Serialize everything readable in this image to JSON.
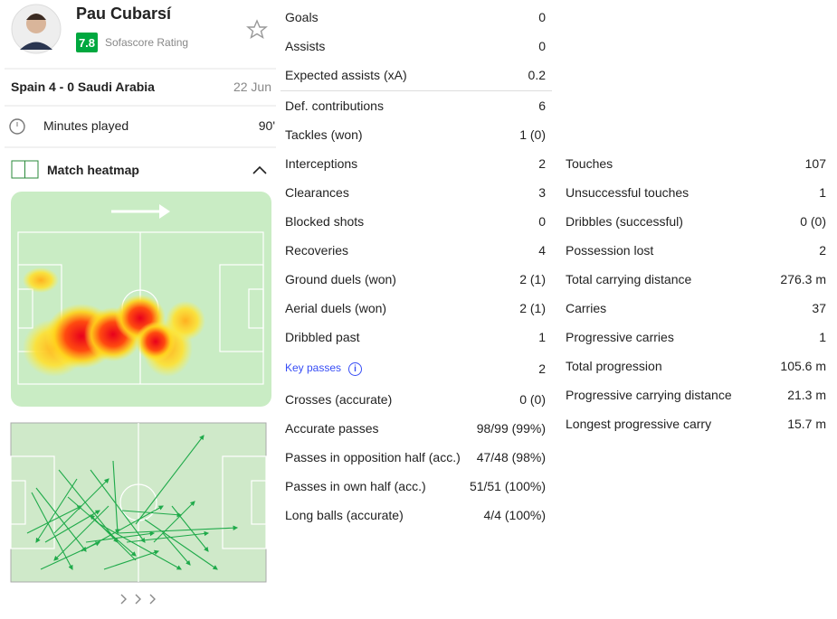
{
  "player": {
    "name": "Pau Cubarsí",
    "rating": "7.8",
    "rating_label": "Sofascore Rating"
  },
  "match": {
    "title": "Spain 4 - 0 Saudi Arabia",
    "date": "22 Jun"
  },
  "minutes": {
    "label": "Minutes played",
    "value": "90'"
  },
  "heatmap": {
    "title": "Match heatmap"
  },
  "stats": {
    "sections": [
      {
        "rows": [
          [
            "Goals",
            "0"
          ],
          [
            "Assists",
            "0"
          ],
          [
            "Expected assists (xA)",
            "0.2"
          ]
        ]
      },
      {
        "rows": [
          [
            "Def. contributions",
            "6"
          ],
          [
            "Tackles (won)",
            "1 (0)"
          ],
          [
            "Interceptions",
            "2"
          ],
          [
            "Clearances",
            "3"
          ],
          [
            "Blocked shots",
            "0"
          ],
          [
            "Recoveries",
            "4"
          ],
          [
            "Ground duels (won)",
            "2 (1)"
          ],
          [
            "Aerial duels (won)",
            "2 (1)"
          ],
          [
            "Dribbled past",
            "1"
          ],
          [
            "Key passes",
            "2"
          ],
          [
            "Crosses (accurate)",
            "0 (0)"
          ],
          [
            "Accurate passes",
            "98/99 (99%)"
          ],
          [
            "Passes in opposition half (acc.)",
            "47/48 (98%)"
          ],
          [
            "Passes in own half (acc.)",
            "51/51 (100%)"
          ],
          [
            "Long balls (accurate)",
            "4/4 (100%)"
          ]
        ]
      },
      {
        "rows": [
          [
            "Touches",
            "107"
          ],
          [
            "Unsuccessful touches",
            "1"
          ],
          [
            "Dribbles (successful)",
            "0 (0)"
          ],
          [
            "Possession lost",
            "2"
          ],
          [
            "Total carrying distance",
            "276.3 m"
          ],
          [
            "Carries",
            "37"
          ],
          [
            "Progressive carries",
            "1"
          ],
          [
            "Total progression",
            "105.6 m"
          ],
          [
            "Progressive carrying distance",
            "21.3 m"
          ],
          [
            "Longest progressive carry",
            "15.7 m"
          ]
        ]
      }
    ]
  }
}
